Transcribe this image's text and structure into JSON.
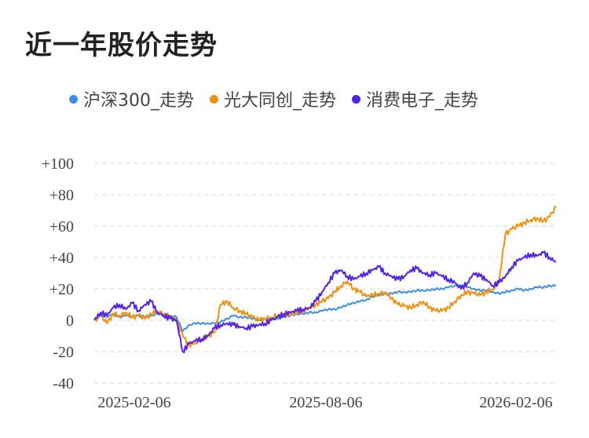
{
  "title": "近一年股价走势",
  "chart_data": {
    "type": "line",
    "title": "近一年股价走势",
    "legend_position": "top",
    "grid": true,
    "x_ticks": [
      "2025-02-06",
      "2025-08-06",
      "2026-02-06"
    ],
    "y_ticks": [
      "+100",
      "+80",
      "+60",
      "+40",
      "+20",
      "0",
      "-20",
      "-40"
    ],
    "ylim": [
      -40,
      100
    ],
    "x_domain": [
      0,
      365
    ],
    "series": [
      {
        "name": "沪深300_走势",
        "color": "#3b8fe8",
        "x": [
          0,
          5,
          10,
          15,
          20,
          25,
          30,
          35,
          40,
          45,
          50,
          55,
          60,
          65,
          70,
          75,
          80,
          85,
          90,
          95,
          100,
          105,
          110,
          115,
          120,
          125,
          130,
          135,
          140,
          145,
          150,
          155,
          160,
          165,
          170,
          175,
          180,
          185,
          190,
          195,
          200,
          205,
          210,
          215,
          220,
          225,
          230,
          235,
          240,
          245,
          250,
          255,
          260,
          265,
          270,
          275,
          280,
          285,
          290,
          295,
          300,
          305,
          310,
          315,
          320,
          325,
          330,
          335,
          340,
          345,
          350,
          355,
          360,
          365
        ],
        "values": [
          0,
          3,
          2,
          4,
          2,
          3,
          2,
          3,
          2,
          3,
          4,
          4,
          3,
          2,
          -7,
          -3,
          -2,
          -2,
          -2,
          -2,
          -1,
          1,
          3,
          2,
          2,
          1,
          0,
          1,
          1,
          1,
          2,
          3,
          4,
          4,
          5,
          5,
          6,
          7,
          7,
          8,
          10,
          11,
          12,
          13,
          15,
          16,
          17,
          17,
          18,
          18,
          18,
          19,
          19,
          19,
          20,
          20,
          21,
          22,
          22,
          21,
          20,
          19,
          19,
          18,
          17,
          18,
          19,
          20,
          19,
          20,
          21,
          21,
          22,
          22
        ]
      },
      {
        "name": "光大同创_走势",
        "color": "#f0900e",
        "x": [
          0,
          5,
          10,
          15,
          20,
          25,
          30,
          35,
          40,
          45,
          50,
          55,
          60,
          65,
          70,
          75,
          80,
          85,
          90,
          95,
          100,
          105,
          110,
          115,
          120,
          125,
          130,
          135,
          140,
          145,
          150,
          155,
          160,
          165,
          170,
          175,
          180,
          185,
          190,
          195,
          200,
          205,
          210,
          215,
          220,
          225,
          230,
          235,
          240,
          245,
          250,
          255,
          260,
          265,
          270,
          275,
          280,
          285,
          290,
          295,
          300,
          305,
          310,
          315,
          320,
          325,
          330,
          335,
          340,
          345,
          350,
          355,
          360,
          365
        ],
        "values": [
          0,
          3,
          -2,
          4,
          3,
          5,
          2,
          3,
          1,
          4,
          6,
          4,
          2,
          0,
          -10,
          -16,
          -14,
          -12,
          -10,
          -8,
          10,
          12,
          8,
          6,
          4,
          2,
          0,
          1,
          2,
          3,
          4,
          3,
          5,
          6,
          8,
          10,
          12,
          14,
          18,
          22,
          25,
          20,
          18,
          15,
          16,
          17,
          18,
          14,
          10,
          9,
          8,
          10,
          12,
          8,
          6,
          6,
          8,
          12,
          16,
          18,
          17,
          16,
          18,
          20,
          25,
          55,
          58,
          60,
          62,
          64,
          65,
          63,
          66,
          72
        ]
      },
      {
        "name": "消费电子_走势",
        "color": "#5023e6",
        "x": [
          0,
          5,
          10,
          15,
          20,
          25,
          30,
          35,
          40,
          45,
          50,
          55,
          60,
          65,
          70,
          75,
          80,
          85,
          90,
          95,
          100,
          105,
          110,
          115,
          120,
          125,
          130,
          135,
          140,
          145,
          150,
          155,
          160,
          165,
          170,
          175,
          180,
          185,
          190,
          195,
          200,
          205,
          210,
          215,
          220,
          225,
          230,
          235,
          240,
          245,
          250,
          255,
          260,
          265,
          270,
          275,
          280,
          285,
          290,
          295,
          300,
          305,
          310,
          315,
          320,
          325,
          330,
          335,
          340,
          345,
          350,
          355,
          360,
          365
        ],
        "values": [
          0,
          5,
          3,
          8,
          10,
          7,
          11,
          6,
          10,
          12,
          5,
          3,
          1,
          0,
          -20,
          -15,
          -13,
          -12,
          -10,
          -5,
          -3,
          -2,
          -3,
          -4,
          -5,
          -4,
          -3,
          -2,
          0,
          2,
          4,
          5,
          6,
          7,
          8,
          12,
          18,
          24,
          30,
          32,
          28,
          26,
          28,
          30,
          32,
          34,
          30,
          28,
          26,
          28,
          32,
          33,
          30,
          29,
          30,
          28,
          26,
          24,
          20,
          24,
          30,
          28,
          26,
          22,
          24,
          28,
          34,
          38,
          40,
          42,
          41,
          43,
          40,
          37
        ]
      }
    ]
  }
}
